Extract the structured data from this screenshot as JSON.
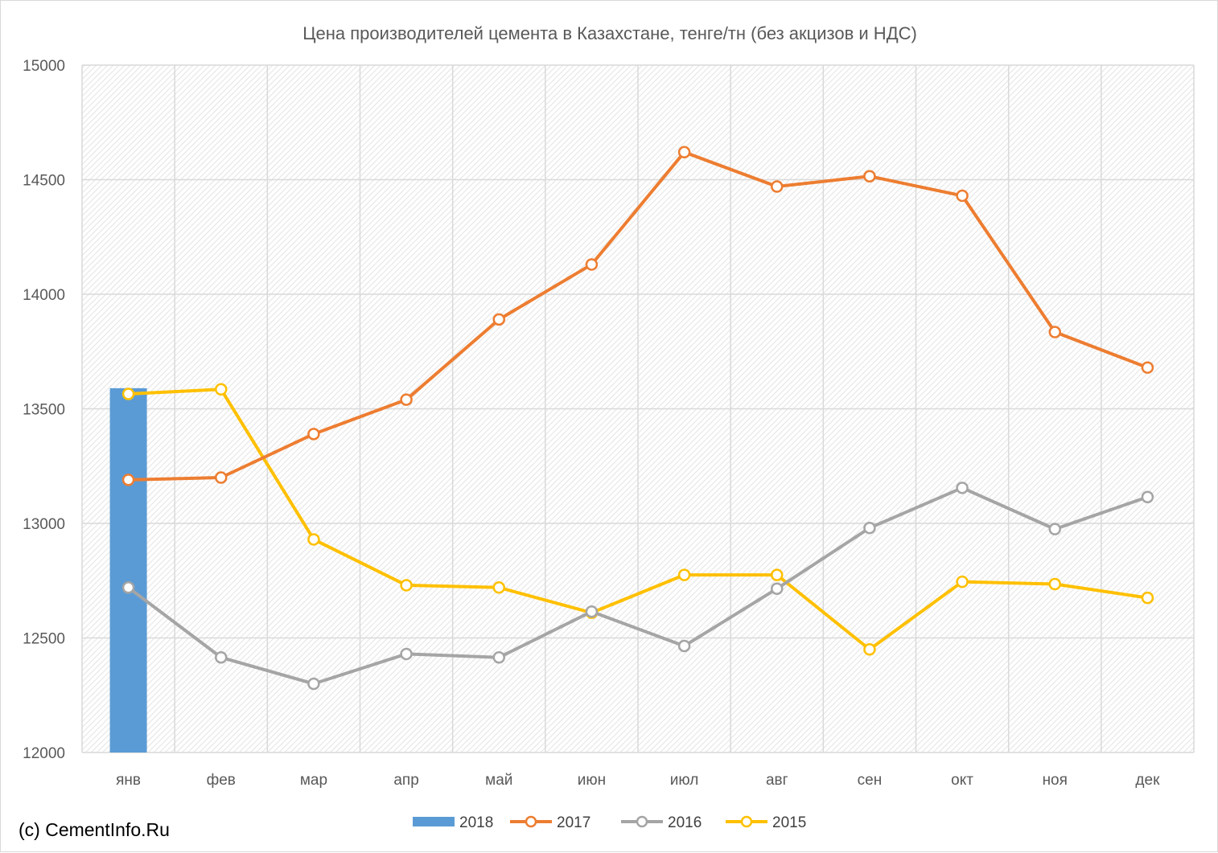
{
  "colors": {
    "s2018": "#5b9bd5",
    "s2017": "#ed7d31",
    "s2016": "#a5a5a5",
    "s2015": "#ffc000",
    "grid": "#d9d9d9",
    "hatch": "#e6e6e6",
    "text": "#595959"
  },
  "copyright": "(c) CementInfo.Ru",
  "chart_data": {
    "type": "line",
    "title": "Цена производителей цемента в Казахстане, тенге/тн (без акцизов и НДС)",
    "xlabel": "",
    "ylabel": "",
    "ylim": [
      12000,
      15000
    ],
    "yticks": [
      12000,
      12500,
      13000,
      13500,
      14000,
      14500,
      15000
    ],
    "grid": true,
    "legend_position": "bottom",
    "categories": [
      "янв",
      "фев",
      "мар",
      "апр",
      "май",
      "июн",
      "июл",
      "авг",
      "сен",
      "окт",
      "ноя",
      "дек"
    ],
    "series": [
      {
        "name": "2018",
        "kind": "bar",
        "color": "#5b9bd5",
        "values": [
          13590,
          null,
          null,
          null,
          null,
          null,
          null,
          null,
          null,
          null,
          null,
          null
        ]
      },
      {
        "name": "2017",
        "kind": "line",
        "color": "#ed7d31",
        "values": [
          13190,
          13200,
          13390,
          13540,
          13890,
          14130,
          14620,
          14470,
          14515,
          14430,
          13835,
          13680
        ]
      },
      {
        "name": "2016",
        "kind": "line",
        "color": "#a5a5a5",
        "values": [
          12720,
          12415,
          12300,
          12430,
          12415,
          12615,
          12465,
          12715,
          12980,
          13155,
          12975,
          13115
        ]
      },
      {
        "name": "2015",
        "kind": "line",
        "color": "#ffc000",
        "values": [
          13565,
          13585,
          12930,
          12730,
          12720,
          12610,
          12775,
          12775,
          12450,
          12745,
          12735,
          12675
        ]
      }
    ]
  }
}
